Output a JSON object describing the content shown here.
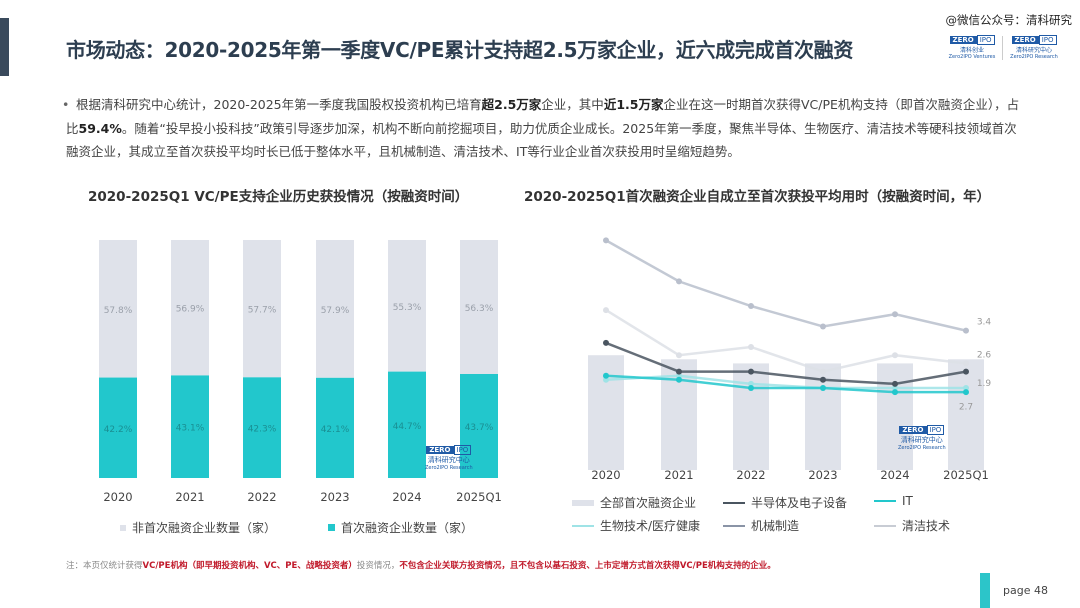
{
  "header": {
    "title": "市场动态：2020-2025年第一季度VC/PE累计支持超2.5万家企业，近六成完成首次融资",
    "watermark": "@微信公众号：清科研究",
    "logos": [
      {
        "brand": "ZERO2IPO",
        "name": "清科创业",
        "sub": "Zero2IPO Ventures"
      },
      {
        "brand": "ZERO2IPO",
        "name": "清科研究中心",
        "sub": "Zero2IPO Research"
      }
    ]
  },
  "summary": {
    "segments": [
      {
        "t": "根据清科研究中心统计，2020-2025年第一季度我国股权投资机构已培育",
        "b": false
      },
      {
        "t": "超2.5万家",
        "b": true
      },
      {
        "t": "企业，其中",
        "b": false
      },
      {
        "t": "近1.5万家",
        "b": true
      },
      {
        "t": "企业在这一时期首次获得VC/PE机构支持（即首次融资企业），占比",
        "b": false
      },
      {
        "t": "59.4%",
        "b": true
      },
      {
        "t": "。随着“投早投小投科技”政策引导逐步加深，机构不断向前挖掘项目，助力优质企业成长。2025年第一季度，聚焦半导体、生物医疗、清洁技术等硬科技领域首次融资企业，其成立至首次获投平均时长已低于整体水平，且机械制造、清洁技术、IT等行业企业首次获投用时呈缩短趋势。",
        "b": false
      }
    ]
  },
  "chart_data": [
    {
      "type": "bar",
      "stacked": true,
      "title": "2020-2025Q1 VC/PE支持企业历史获投情况（按融资时间）",
      "categories": [
        "2020",
        "2021",
        "2022",
        "2023",
        "2024",
        "2025Q1"
      ],
      "series": [
        {
          "name": "首次融资企业数量（家）",
          "color": "#22c7cc",
          "values": [
            42.2,
            43.1,
            42.3,
            42.1,
            44.7,
            43.7
          ],
          "labels": [
            "42.2%",
            "43.1%",
            "42.3%",
            "42.1%",
            "44.7%",
            "43.7%"
          ]
        },
        {
          "name": "非首次融资企业数量（家）",
          "color": "#dfe2ea",
          "values": [
            57.8,
            56.9,
            57.7,
            57.9,
            55.3,
            56.3
          ],
          "labels": [
            "57.8%",
            "56.9%",
            "57.7%",
            "57.9%",
            "55.3%",
            "56.3%"
          ]
        }
      ],
      "ylim": [
        0,
        100
      ],
      "grid": false,
      "legend": "bottom",
      "watermark": {
        "brand": "ZERO2IPO",
        "name": "清科研究中心",
        "sub": "Zero2IPO Research"
      }
    },
    {
      "type": "line",
      "title": "2020-2025Q1首次融资企业自成立至首次获投平均用时（按融资时间，年）",
      "categories": [
        "2020",
        "2021",
        "2022",
        "2023",
        "2024",
        "2025Q1"
      ],
      "bars": {
        "name": "全部首次融资企业",
        "color": "#dfe2ea",
        "values": [
          2.8,
          2.7,
          2.6,
          2.6,
          2.6,
          2.7
        ],
        "end_label": "2.7"
      },
      "series": [
        {
          "name": "半导体及电子设备",
          "color": "#4a5560",
          "values": [
            3.1,
            2.4,
            2.4,
            2.2,
            2.1,
            2.4
          ]
        },
        {
          "name": "IT",
          "color": "#22c7cc",
          "values": [
            2.3,
            2.2,
            2.0,
            2.0,
            1.9,
            1.9
          ],
          "end_label": "1.9"
        },
        {
          "name": "生物技术/医疗健康",
          "color": "#9fe3e6",
          "values": [
            2.2,
            2.3,
            2.1,
            2.0,
            2.0,
            2.0
          ]
        },
        {
          "name": "机械制造",
          "color": "#b9bfcc",
          "values": [
            5.6,
            4.6,
            4.0,
            3.5,
            3.8,
            3.4
          ],
          "end_label": "3.4"
        },
        {
          "name": "清洁技术",
          "color": "#dde0e6",
          "values": [
            3.9,
            2.8,
            3.0,
            2.4,
            2.8,
            2.6
          ],
          "end_label": "2.6"
        }
      ],
      "ylim": [
        0,
        6
      ],
      "grid": false,
      "legend": "bottom",
      "watermark": {
        "brand": "ZERO2IPO",
        "name": "清科研究中心",
        "sub": "Zero2IPO Research"
      }
    }
  ],
  "footnote": [
    {
      "t": "注：本页仅统计获得",
      "r": false
    },
    {
      "t": "VC/PE机构（即早期投资机构、VC、PE、战略投资者）",
      "r": true
    },
    {
      "t": "投资情况，",
      "r": false
    },
    {
      "t": "不包含企业关联方投资情况，且不包含以基石投资、上市定增方式首次获得VC/PE机构支持的企业。",
      "r": true
    }
  ],
  "page": {
    "label": "page  48"
  },
  "colors": {
    "accent": "#3a4a5c",
    "teal": "#22c7cc",
    "red": "#c0192a",
    "brand": "#1f5aa6"
  }
}
